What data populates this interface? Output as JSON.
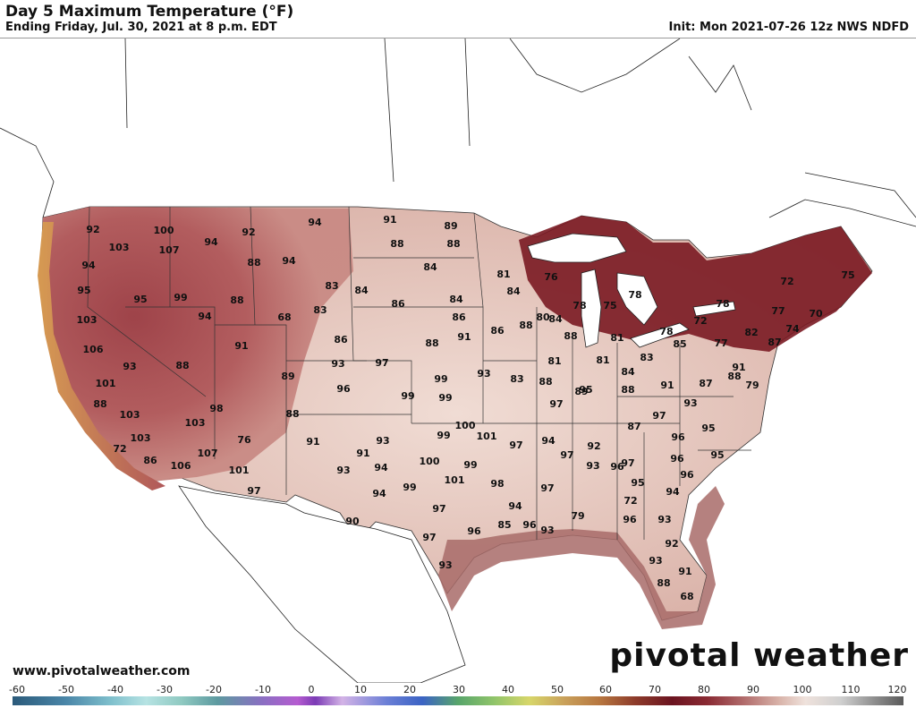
{
  "header": {
    "title": "Day 5 Maximum Temperature (°F)",
    "subtitle": "Ending Friday, Jul. 30, 2021 at 8 p.m. EDT",
    "init": "Init: Mon 2021-07-26 12z NWS NDFD"
  },
  "footer": {
    "url": "www.pivotalweather.com",
    "logo": "pivotal weather"
  },
  "colorbar": {
    "ticks": [
      "-60",
      "-50",
      "-40",
      "-30",
      "-20",
      "-10",
      "0",
      "10",
      "20",
      "30",
      "40",
      "50",
      "60",
      "70",
      "80",
      "90",
      "100",
      "110",
      "120"
    ]
  },
  "colors": {
    "hot": "#7a1a22",
    "warm": "#a8494a",
    "mild": "#e6c8bd",
    "ocean": "#ffffff",
    "border": "#222222"
  },
  "temps": [
    {
      "id": "t01",
      "v": "92"
    },
    {
      "id": "t02",
      "v": "103"
    },
    {
      "id": "t03",
      "v": "94"
    },
    {
      "id": "t04",
      "v": "95"
    },
    {
      "id": "t05",
      "v": "103"
    },
    {
      "id": "t06",
      "v": "106"
    },
    {
      "id": "t07",
      "v": "93"
    },
    {
      "id": "t08",
      "v": "101"
    },
    {
      "id": "t09",
      "v": "88"
    },
    {
      "id": "t10",
      "v": "103"
    },
    {
      "id": "t11",
      "v": "72"
    },
    {
      "id": "t12",
      "v": "103"
    },
    {
      "id": "t13",
      "v": "86"
    },
    {
      "id": "t14",
      "v": "106"
    },
    {
      "id": "t15",
      "v": "100"
    },
    {
      "id": "t16",
      "v": "107"
    },
    {
      "id": "t17",
      "v": "95"
    },
    {
      "id": "t18",
      "v": "99"
    },
    {
      "id": "t19",
      "v": "94"
    },
    {
      "id": "t20",
      "v": "88"
    },
    {
      "id": "t21",
      "v": "94"
    },
    {
      "id": "t22",
      "v": "92"
    },
    {
      "id": "t23",
      "v": "88"
    },
    {
      "id": "t24",
      "v": "94"
    },
    {
      "id": "t25",
      "v": "88"
    },
    {
      "id": "t26",
      "v": "68"
    },
    {
      "id": "t27",
      "v": "83"
    },
    {
      "id": "t28",
      "v": "83"
    },
    {
      "id": "t29",
      "v": "91"
    },
    {
      "id": "t30",
      "v": "86"
    },
    {
      "id": "t31",
      "v": "89"
    },
    {
      "id": "t32",
      "v": "93"
    },
    {
      "id": "t33",
      "v": "96"
    },
    {
      "id": "t34",
      "v": "98"
    },
    {
      "id": "t35",
      "v": "88"
    },
    {
      "id": "t36",
      "v": "103"
    },
    {
      "id": "t37",
      "v": "76"
    },
    {
      "id": "t38",
      "v": "107"
    },
    {
      "id": "t39",
      "v": "101"
    },
    {
      "id": "t40",
      "v": "97"
    },
    {
      "id": "t41",
      "v": "91"
    },
    {
      "id": "t42",
      "v": "94"
    },
    {
      "id": "t43",
      "v": "91"
    },
    {
      "id": "t44",
      "v": "88"
    },
    {
      "id": "t45",
      "v": "84"
    },
    {
      "id": "t46",
      "v": "86"
    },
    {
      "id": "t47",
      "v": "89"
    },
    {
      "id": "t48",
      "v": "88"
    },
    {
      "id": "t49",
      "v": "84"
    },
    {
      "id": "t50",
      "v": "84"
    },
    {
      "id": "t51",
      "v": "86"
    },
    {
      "id": "t52",
      "v": "88"
    },
    {
      "id": "t53",
      "v": "97"
    },
    {
      "id": "t54",
      "v": "99"
    },
    {
      "id": "t55",
      "v": "99"
    },
    {
      "id": "t56",
      "v": "99"
    },
    {
      "id": "t57",
      "v": "93"
    },
    {
      "id": "t58",
      "v": "91"
    },
    {
      "id": "t59",
      "v": "94"
    },
    {
      "id": "t60",
      "v": "93"
    },
    {
      "id": "t61",
      "v": "100"
    },
    {
      "id": "t62",
      "v": "99"
    },
    {
      "id": "t63",
      "v": "101"
    },
    {
      "id": "t64",
      "v": "99"
    },
    {
      "id": "t65",
      "v": "101"
    },
    {
      "id": "t66",
      "v": "100"
    },
    {
      "id": "t67",
      "v": "99"
    },
    {
      "id": "t68",
      "v": "94"
    },
    {
      "id": "t69",
      "v": "90"
    },
    {
      "id": "t70",
      "v": "97"
    },
    {
      "id": "t71",
      "v": "97"
    },
    {
      "id": "t72",
      "v": "96"
    },
    {
      "id": "t73",
      "v": "93"
    },
    {
      "id": "t74",
      "v": "97"
    },
    {
      "id": "t75",
      "v": "98"
    },
    {
      "id": "t76",
      "v": "94"
    },
    {
      "id": "t77",
      "v": "85"
    },
    {
      "id": "t78",
      "v": "81"
    },
    {
      "id": "t79",
      "v": "84"
    },
    {
      "id": "t80",
      "v": "88"
    },
    {
      "id": "t81",
      "v": "86"
    },
    {
      "id": "t82",
      "v": "91"
    },
    {
      "id": "t83",
      "v": "93"
    },
    {
      "id": "t84",
      "v": "83"
    },
    {
      "id": "t85",
      "v": "81"
    },
    {
      "id": "t86",
      "v": "80"
    },
    {
      "id": "t87",
      "v": "84"
    },
    {
      "id": "t88",
      "v": "88"
    },
    {
      "id": "t89",
      "v": "88"
    },
    {
      "id": "t90",
      "v": "89"
    },
    {
      "id": "t91",
      "v": "97"
    },
    {
      "id": "t92",
      "v": "94"
    },
    {
      "id": "t93",
      "v": "96"
    },
    {
      "id": "t94",
      "v": "97"
    },
    {
      "id": "t95",
      "v": "97"
    },
    {
      "id": "t96",
      "v": "93"
    },
    {
      "id": "t97",
      "v": "93"
    },
    {
      "id": "t98",
      "v": "79"
    },
    {
      "id": "t99",
      "v": "76"
    },
    {
      "id": "t100",
      "v": "78"
    },
    {
      "id": "t101",
      "v": "75"
    },
    {
      "id": "t102",
      "v": "78"
    },
    {
      "id": "t103",
      "v": "81"
    },
    {
      "id": "t104",
      "v": "81"
    },
    {
      "id": "t105",
      "v": "83"
    },
    {
      "id": "t106",
      "v": "84"
    },
    {
      "id": "t107",
      "v": "88"
    },
    {
      "id": "t108",
      "v": "95"
    },
    {
      "id": "t109",
      "v": "92"
    },
    {
      "id": "t110",
      "v": "87"
    },
    {
      "id": "t111",
      "v": "97"
    },
    {
      "id": "t112",
      "v": "96"
    },
    {
      "id": "t113",
      "v": "97"
    },
    {
      "id": "t114",
      "v": "95"
    },
    {
      "id": "t115",
      "v": "96"
    },
    {
      "id": "t116",
      "v": "72"
    },
    {
      "id": "t117",
      "v": "78"
    },
    {
      "id": "t118",
      "v": "85"
    },
    {
      "id": "t119",
      "v": "91"
    },
    {
      "id": "t120",
      "v": "93"
    },
    {
      "id": "t121",
      "v": "95"
    },
    {
      "id": "t122",
      "v": "96"
    },
    {
      "id": "t123",
      "v": "95"
    },
    {
      "id": "t124",
      "v": "96"
    },
    {
      "id": "t125",
      "v": "96"
    },
    {
      "id": "t126",
      "v": "94"
    },
    {
      "id": "t127",
      "v": "93"
    },
    {
      "id": "t128",
      "v": "92"
    },
    {
      "id": "t129",
      "v": "93"
    },
    {
      "id": "t130",
      "v": "91"
    },
    {
      "id": "t131",
      "v": "88"
    },
    {
      "id": "t132",
      "v": "68"
    },
    {
      "id": "t133",
      "v": "72"
    },
    {
      "id": "t134",
      "v": "78"
    },
    {
      "id": "t135",
      "v": "77"
    },
    {
      "id": "t136",
      "v": "82"
    },
    {
      "id": "t137",
      "v": "87"
    },
    {
      "id": "t138",
      "v": "87"
    },
    {
      "id": "t139",
      "v": "91"
    },
    {
      "id": "t140",
      "v": "88"
    },
    {
      "id": "t141",
      "v": "79"
    },
    {
      "id": "t142",
      "v": "77"
    },
    {
      "id": "t143",
      "v": "74"
    },
    {
      "id": "t144",
      "v": "70"
    },
    {
      "id": "t145",
      "v": "72"
    },
    {
      "id": "t146",
      "v": "75"
    }
  ]
}
